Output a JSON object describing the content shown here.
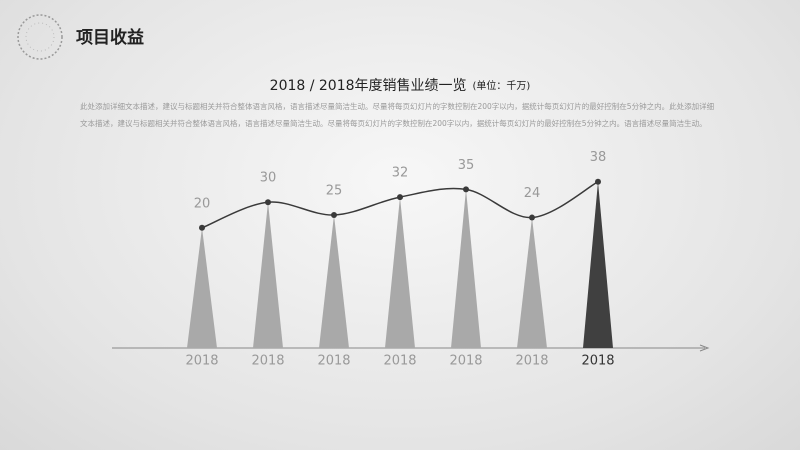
{
  "header": {
    "title": "项目收益"
  },
  "chart_data": {
    "type": "cone",
    "title": "2018 / 2018年度销售业绩一览",
    "subtitle": "(单位：千万)",
    "description": "此处添加详细文本描述，建议与标题相关并符合整体语言风格，语言描述尽量简洁生动。尽量将每页幻灯片的字数控制在200字以内，据统计每页幻灯片的最好控制在5分钟之内。此处添加详细文本描述，建议与标题相关并符合整体语言风格，语言描述尽量简洁生动。尽量将每页幻灯片的字数控制在200字以内，据统计每页幻灯片的最好控制在5分钟之内。语言描述尽量简洁生动。",
    "categories": [
      "2018",
      "2018",
      "2018",
      "2018",
      "2018",
      "2018",
      "2018"
    ],
    "values": [
      20,
      30,
      25,
      32,
      35,
      24,
      38
    ],
    "colors": [
      "#a9a9a9",
      "#a9a9a9",
      "#a9a9a9",
      "#a9a9a9",
      "#a9a9a9",
      "#a9a9a9",
      "#404040"
    ],
    "line_color": "#3a3a3a"
  }
}
